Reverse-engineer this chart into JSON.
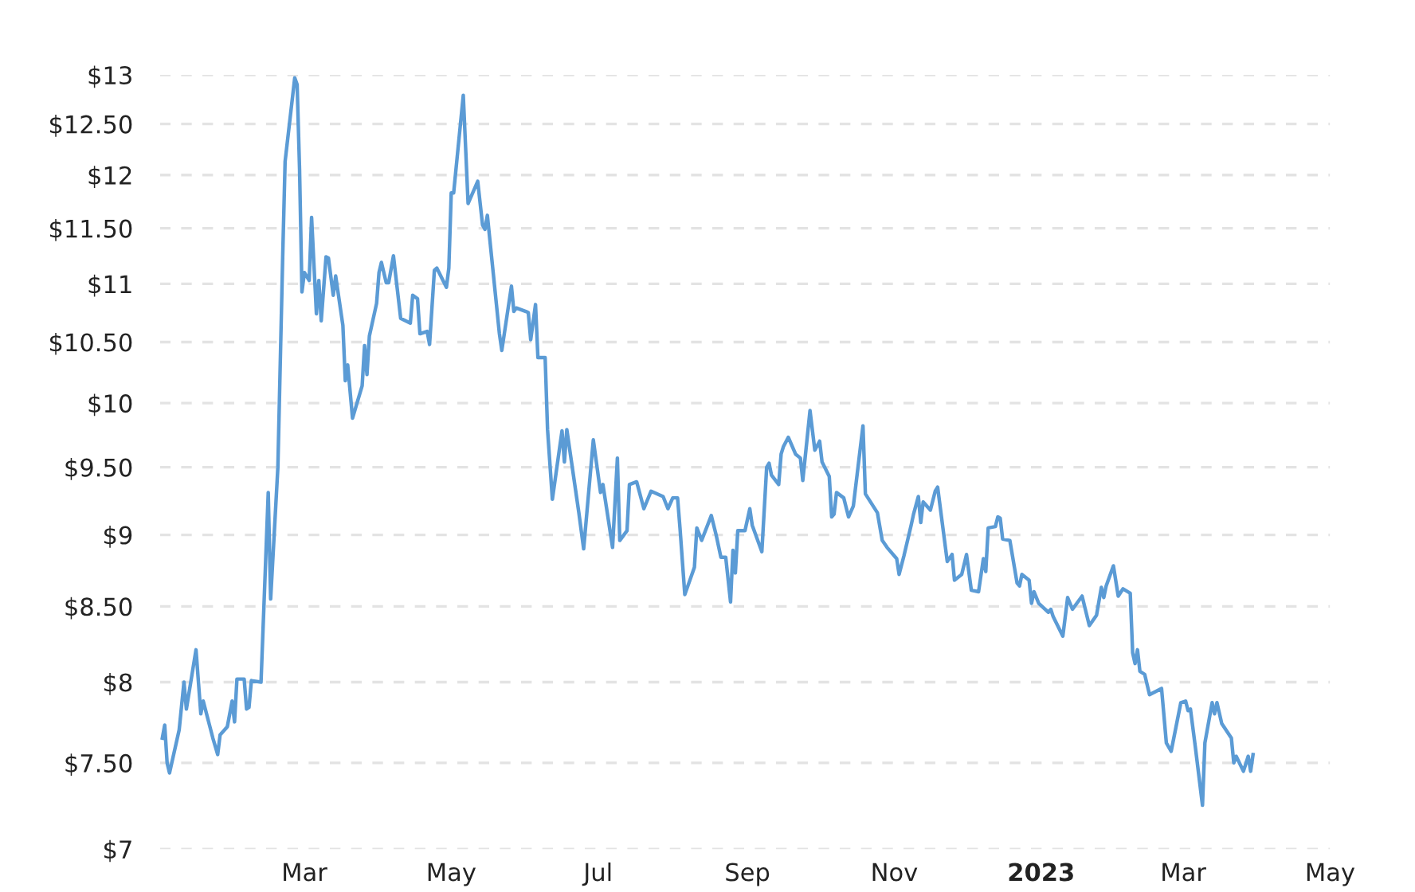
{
  "chart_data": {
    "type": "line",
    "log": "y",
    "grid": "y",
    "marker": "none",
    "line_style": "solid",
    "xlim": [
      "2021-12-31",
      "2023-05-01"
    ],
    "ylim": [
      7,
      13
    ],
    "xticks": [
      {
        "value": "2022-03-01",
        "label": "Mar"
      },
      {
        "value": "2022-05-01",
        "label": "May"
      },
      {
        "value": "2022-07-01",
        "label": "Jul"
      },
      {
        "value": "2022-09-01",
        "label": "Sep"
      },
      {
        "value": "2022-11-01",
        "label": "Nov"
      },
      {
        "value": "2023-01-01",
        "label": "2023"
      },
      {
        "value": "2023-03-01",
        "label": "Mar"
      },
      {
        "value": "2023-05-01",
        "label": "May"
      }
    ],
    "yticks": [
      {
        "value": 7,
        "label": "$7"
      },
      {
        "value": 7.5,
        "label": "$7.50"
      },
      {
        "value": 8,
        "label": "$8"
      },
      {
        "value": 8.5,
        "label": "$8.50"
      },
      {
        "value": 9,
        "label": "$9"
      },
      {
        "value": 9.5,
        "label": "$9.50"
      },
      {
        "value": 10,
        "label": "$10"
      },
      {
        "value": 10.5,
        "label": "$10.50"
      },
      {
        "value": 11,
        "label": "$11"
      },
      {
        "value": 11.5,
        "label": "$11.50"
      },
      {
        "value": 12,
        "label": "$12"
      },
      {
        "value": 12.5,
        "label": "$12.50"
      },
      {
        "value": 13,
        "label": "$13"
      }
    ],
    "series": [
      {
        "color": "#5b9bd5",
        "x": [
          "2022-01-01",
          "2022-01-02",
          "2022-01-03",
          "2022-01-04",
          "2022-01-08",
          "2022-01-10",
          "2022-01-11",
          "2022-01-15",
          "2022-01-17",
          "2022-01-18",
          "2022-01-22",
          "2022-01-24",
          "2022-01-25",
          "2022-01-28",
          "2022-01-30",
          "2022-01-31",
          "2022-02-01",
          "2022-02-04",
          "2022-02-05",
          "2022-02-06",
          "2022-02-07",
          "2022-02-11",
          "2022-02-14",
          "2022-02-15",
          "2022-02-18",
          "2022-02-20",
          "2022-02-21",
          "2022-02-25",
          "2022-02-26",
          "2022-02-27",
          "2022-02-28",
          "2022-03-01",
          "2022-03-03",
          "2022-03-04",
          "2022-03-06",
          "2022-03-07",
          "2022-03-08",
          "2022-03-10",
          "2022-03-11",
          "2022-03-13",
          "2022-03-14",
          "2022-03-17",
          "2022-03-18",
          "2022-03-19",
          "2022-03-21",
          "2022-03-25",
          "2022-03-26",
          "2022-03-27",
          "2022-03-28",
          "2022-03-31",
          "2022-04-01",
          "2022-04-02",
          "2022-04-04",
          "2022-04-05",
          "2022-04-07",
          "2022-04-10",
          "2022-04-14",
          "2022-04-15",
          "2022-04-17",
          "2022-04-18",
          "2022-04-21",
          "2022-04-22",
          "2022-04-24",
          "2022-04-25",
          "2022-04-29",
          "2022-04-30",
          "2022-05-01",
          "2022-05-02",
          "2022-05-06",
          "2022-05-08",
          "2022-05-12",
          "2022-05-14",
          "2022-05-15",
          "2022-05-16",
          "2022-05-21",
          "2022-05-22",
          "2022-05-26",
          "2022-05-27",
          "2022-05-28",
          "2022-06-01",
          "2022-06-02",
          "2022-06-03",
          "2022-06-05",
          "2022-06-06",
          "2022-06-09",
          "2022-06-10",
          "2022-06-12",
          "2022-06-16",
          "2022-06-17",
          "2022-06-18",
          "2022-06-23",
          "2022-06-25",
          "2022-06-29",
          "2022-07-02",
          "2022-07-03",
          "2022-07-07",
          "2022-07-09",
          "2022-07-10",
          "2022-07-13",
          "2022-07-14",
          "2022-07-17",
          "2022-07-20",
          "2022-07-23",
          "2022-07-28",
          "2022-07-30",
          "2022-08-01",
          "2022-08-03",
          "2022-08-04",
          "2022-08-06",
          "2022-08-10",
          "2022-08-11",
          "2022-08-13",
          "2022-08-17",
          "2022-08-19",
          "2022-08-21",
          "2022-08-23",
          "2022-08-25",
          "2022-08-26",
          "2022-08-27",
          "2022-08-28",
          "2022-08-31",
          "2022-09-02",
          "2022-09-03",
          "2022-09-07",
          "2022-09-09",
          "2022-09-10",
          "2022-09-11",
          "2022-09-14",
          "2022-09-15",
          "2022-09-16",
          "2022-09-18",
          "2022-09-21",
          "2022-09-23",
          "2022-09-24",
          "2022-09-27",
          "2022-09-29",
          "2022-10-01",
          "2022-10-02",
          "2022-10-05",
          "2022-10-06",
          "2022-10-07",
          "2022-10-08",
          "2022-10-11",
          "2022-10-13",
          "2022-10-15",
          "2022-10-19",
          "2022-10-20",
          "2022-10-25",
          "2022-10-27",
          "2022-10-29",
          "2022-11-02",
          "2022-11-03",
          "2022-11-05",
          "2022-11-08",
          "2022-11-09",
          "2022-11-11",
          "2022-11-12",
          "2022-11-13",
          "2022-11-16",
          "2022-11-18",
          "2022-11-19",
          "2022-11-23",
          "2022-11-25",
          "2022-11-26",
          "2022-11-29",
          "2022-12-01",
          "2022-12-03",
          "2022-12-06",
          "2022-12-08",
          "2022-12-09",
          "2022-12-10",
          "2022-12-13",
          "2022-12-14",
          "2022-12-15",
          "2022-12-16",
          "2022-12-19",
          "2022-12-22",
          "2022-12-23",
          "2022-12-24",
          "2022-12-27",
          "2022-12-28",
          "2022-12-29",
          "2022-12-31",
          "2023-01-04",
          "2023-01-05",
          "2023-01-06",
          "2023-01-10",
          "2023-01-12",
          "2023-01-14",
          "2023-01-18",
          "2023-01-21",
          "2023-01-24",
          "2023-01-26",
          "2023-01-27",
          "2023-01-28",
          "2023-01-31",
          "2023-02-02",
          "2023-02-04",
          "2023-02-07",
          "2023-02-08",
          "2023-02-09",
          "2023-02-10",
          "2023-02-11",
          "2023-02-13",
          "2023-02-15",
          "2023-02-20",
          "2023-02-22",
          "2023-02-24",
          "2023-02-28",
          "2023-03-02",
          "2023-03-03",
          "2023-03-04",
          "2023-03-06",
          "2023-03-09",
          "2023-03-10",
          "2023-03-13",
          "2023-03-14",
          "2023-03-15",
          "2023-03-17",
          "2023-03-21",
          "2023-03-22",
          "2023-03-23",
          "2023-03-26",
          "2023-03-28",
          "2023-03-29",
          "2023-03-30"
        ],
        "values": [
          7.65,
          7.73,
          7.5,
          7.44,
          7.7,
          8.0,
          7.83,
          8.21,
          7.8,
          7.88,
          7.65,
          7.55,
          7.67,
          7.72,
          7.88,
          7.75,
          8.02,
          8.02,
          7.83,
          7.84,
          8.01,
          8.0,
          9.31,
          8.55,
          9.5,
          11.24,
          12.13,
          12.97,
          12.9,
          12.06,
          10.93,
          11.1,
          11.03,
          11.6,
          10.74,
          11.03,
          10.68,
          11.24,
          11.23,
          10.9,
          11.07,
          10.64,
          10.18,
          10.31,
          9.88,
          10.14,
          10.47,
          10.23,
          10.55,
          10.83,
          11.1,
          11.19,
          11.01,
          11.01,
          11.25,
          10.7,
          10.66,
          10.9,
          10.87,
          10.57,
          10.59,
          10.48,
          11.12,
          11.14,
          10.97,
          11.14,
          11.83,
          11.83,
          12.79,
          11.73,
          11.94,
          11.53,
          11.49,
          11.62,
          10.57,
          10.43,
          10.98,
          10.76,
          10.79,
          10.76,
          10.75,
          10.52,
          10.82,
          10.37,
          10.37,
          9.79,
          9.26,
          9.78,
          9.54,
          9.79,
          9.16,
          8.9,
          9.71,
          9.31,
          9.37,
          8.91,
          9.57,
          8.96,
          9.03,
          9.37,
          9.39,
          9.19,
          9.32,
          9.28,
          9.19,
          9.27,
          9.27,
          9.05,
          8.58,
          8.77,
          9.05,
          8.96,
          9.14,
          9.0,
          8.84,
          8.84,
          8.53,
          8.89,
          8.73,
          9.03,
          9.03,
          9.19,
          9.07,
          8.88,
          9.5,
          9.53,
          9.44,
          9.37,
          9.6,
          9.66,
          9.73,
          9.6,
          9.57,
          9.4,
          9.94,
          9.63,
          9.7,
          9.54,
          9.43,
          9.13,
          9.15,
          9.31,
          9.27,
          9.13,
          9.21,
          9.82,
          9.3,
          9.16,
          8.96,
          8.91,
          8.83,
          8.72,
          8.85,
          9.07,
          9.15,
          9.28,
          9.09,
          9.24,
          9.18,
          9.32,
          9.35,
          8.81,
          8.86,
          8.68,
          8.72,
          8.86,
          8.61,
          8.6,
          8.83,
          8.74,
          9.05,
          9.06,
          9.13,
          9.12,
          8.97,
          8.96,
          8.66,
          8.64,
          8.72,
          8.68,
          8.52,
          8.6,
          8.52,
          8.46,
          8.48,
          8.43,
          8.3,
          8.56,
          8.48,
          8.57,
          8.37,
          8.44,
          8.63,
          8.56,
          8.64,
          8.78,
          8.57,
          8.62,
          8.59,
          8.19,
          8.12,
          8.21,
          8.07,
          8.05,
          7.92,
          7.96,
          7.62,
          7.57,
          7.87,
          7.88,
          7.82,
          7.83,
          7.6,
          7.25,
          7.62,
          7.87,
          7.8,
          7.87,
          7.74,
          7.65,
          7.5,
          7.54,
          7.45,
          7.54,
          7.45,
          7.55
        ]
      }
    ]
  }
}
